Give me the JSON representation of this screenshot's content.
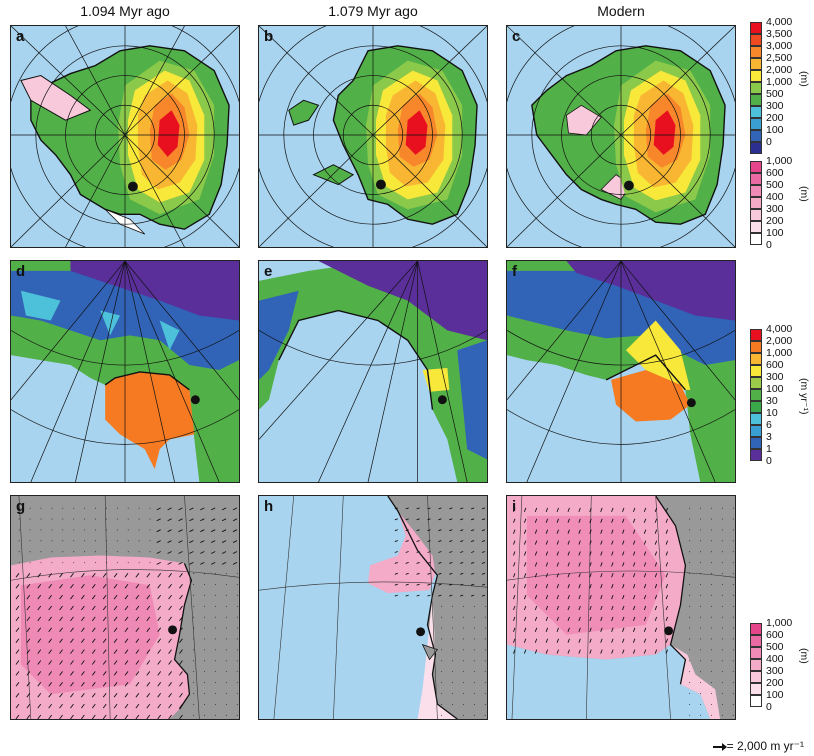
{
  "columns": [
    "1.094 Myr ago",
    "1.079 Myr ago",
    "Modern"
  ],
  "panel_labels": [
    "a",
    "b",
    "c",
    "d",
    "e",
    "f",
    "g",
    "h",
    "i"
  ],
  "colorbars": {
    "thickness": {
      "ticks": [
        "4,000",
        "3,500",
        "3,000",
        "2,500",
        "2,000",
        "1,000",
        "500",
        "300",
        "200",
        "100",
        "0"
      ],
      "colors": [
        "#e8101e",
        "#f04a22",
        "#f7872a",
        "#f8b632",
        "#f8e83a",
        "#8bc94a",
        "#52b048",
        "#4dc1d9",
        "#3a9fd3",
        "#3163b6",
        "#2c2f8f"
      ],
      "unit": "(m)"
    },
    "shelf": {
      "ticks": [
        "1,000",
        "600",
        "500",
        "400",
        "300",
        "200",
        "100",
        "0"
      ],
      "colors": [
        "#e4458b",
        "#ea6aa3",
        "#f08ab6",
        "#f4abc8",
        "#f8c8db",
        "#fbe0ec",
        "#ffffff"
      ],
      "unit": "(m)"
    },
    "velocity": {
      "ticks": [
        "4,000",
        "2,000",
        "1,000",
        "600",
        "300",
        "100",
        "30",
        "10",
        "6",
        "3",
        "1",
        "0"
      ],
      "colors": [
        "#e8101e",
        "#f57a22",
        "#f8b632",
        "#f8e83a",
        "#9ccb4a",
        "#52b048",
        "#3aa848",
        "#4dc1d9",
        "#3a9fd3",
        "#3163b6",
        "#5a2f9a"
      ],
      "unit": "(m yr⁻¹)"
    },
    "shelf2": {
      "ticks": [
        "1,000",
        "600",
        "500",
        "400",
        "300",
        "200",
        "100",
        "0"
      ],
      "colors": [
        "#e4458b",
        "#ea6aa3",
        "#f08ab6",
        "#f4abc8",
        "#f8c8db",
        "#fbe0ec",
        "#ffffff"
      ],
      "unit": "(m)"
    }
  },
  "scale_label": "= 2,000 m yr⁻¹",
  "colors": {
    "ocean": "#a8d4ef",
    "land_gray": "#999999"
  }
}
